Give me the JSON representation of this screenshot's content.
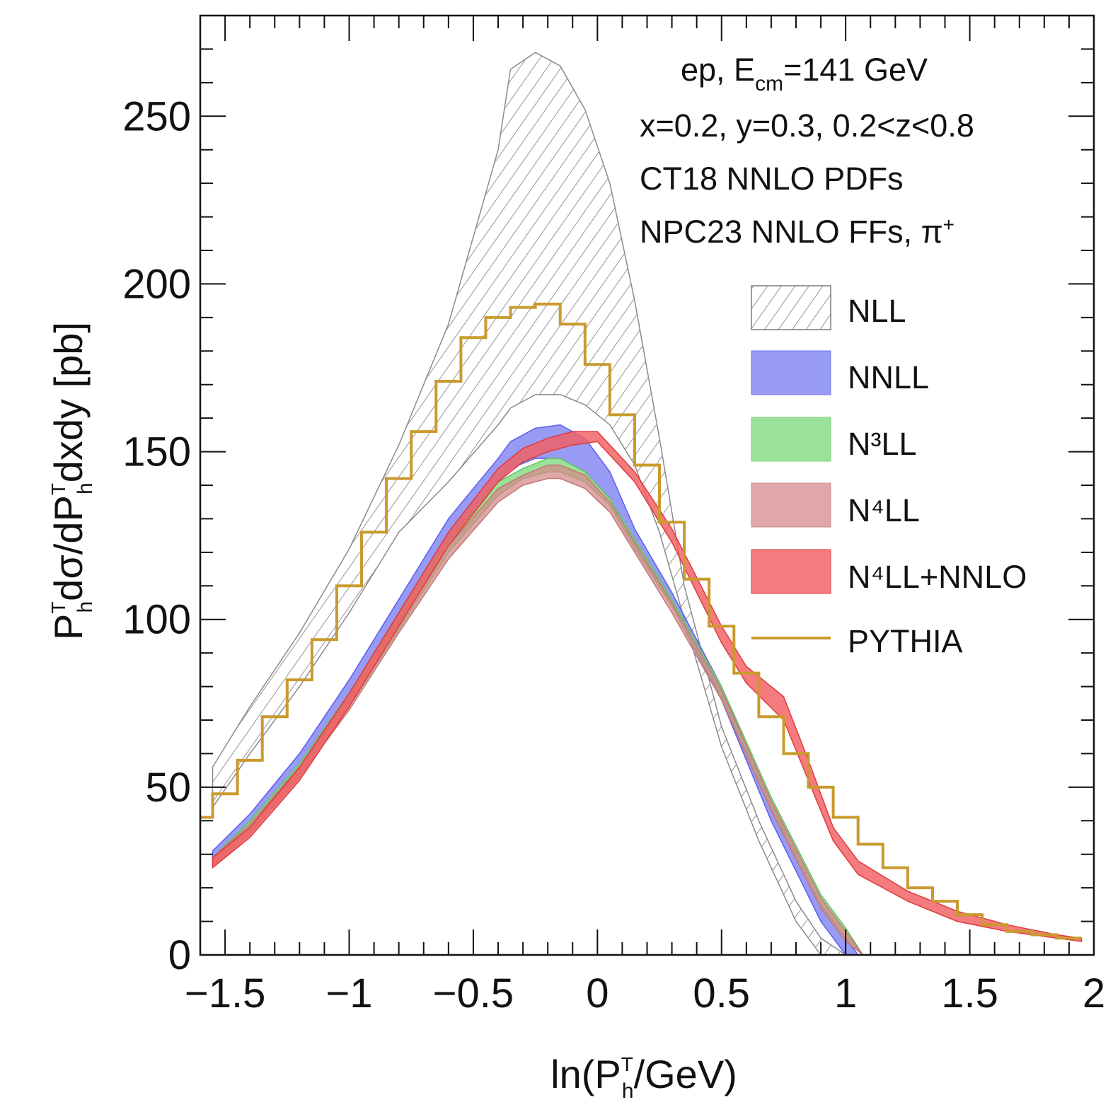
{
  "chart_data": {
    "type": "area",
    "xlabel": {
      "pre": "ln(P",
      "sup": "T",
      "sub": "h",
      "post": "/GeV)"
    },
    "ylabel": {
      "p1": "P",
      "p1_sup": "T",
      "p1_sub": "h",
      "mid": "dσ/dP",
      "p2_sup": "T",
      "p2_sub": "h",
      "post": "dxdy [pb]"
    },
    "xlim": [
      -1.6,
      2.0
    ],
    "ylim": [
      0,
      280
    ],
    "xticks": [
      -1.5,
      -1,
      -0.5,
      0,
      0.5,
      1,
      1.5,
      2
    ],
    "xtick_labels": [
      "−1.5",
      "−1",
      "−0.5",
      "0",
      "0.5",
      "1",
      "1.5",
      "2"
    ],
    "yticks": [
      0,
      50,
      100,
      150,
      200,
      250
    ],
    "ytick_labels": [
      "0",
      "50",
      "100",
      "150",
      "200",
      "250"
    ],
    "grid": false,
    "legend_position": "right",
    "annotations": [
      {
        "pre": "ep, E",
        "sub": "cm",
        "post": "=141 GeV"
      },
      {
        "pre": "x=0.2, y=0.3, 0.2<z<0.8"
      },
      {
        "pre": "CT18 NNLO PDFs"
      },
      {
        "pre": "NPC23 NNLO FFs, π",
        "sup": "+"
      }
    ],
    "series": [
      {
        "name": "NLL",
        "style": "hatch",
        "color": "#8a8a8a",
        "x": [
          -1.55,
          -1.4,
          -1.2,
          -1.0,
          -0.8,
          -0.6,
          -0.4,
          -0.35,
          -0.25,
          -0.15,
          -0.05,
          0.05,
          0.15,
          0.25,
          0.35,
          0.5,
          0.65,
          0.8,
          0.9,
          1.0
        ],
        "upper": [
          56,
          74,
          96,
          121,
          152,
          188,
          240,
          264,
          269,
          265,
          252,
          230,
          195,
          154,
          110,
          68,
          40,
          16,
          5,
          0
        ],
        "lower": [
          44,
          60,
          80,
          102,
          126,
          141,
          158,
          163,
          167,
          167,
          164,
          158,
          146,
          126,
          100,
          62,
          34,
          10,
          0,
          0
        ]
      },
      {
        "name": "NNLL",
        "style": "fill",
        "color": "#6f74f0",
        "x": [
          -1.55,
          -1.4,
          -1.2,
          -1.0,
          -0.8,
          -0.6,
          -0.4,
          -0.35,
          -0.25,
          -0.15,
          -0.05,
          0.05,
          0.15,
          0.3,
          0.5,
          0.7,
          0.9,
          1.0,
          1.05
        ],
        "upper": [
          31,
          42,
          60,
          82,
          106,
          130,
          148,
          153,
          157,
          158,
          154,
          144,
          127,
          108,
          80,
          45,
          15,
          5,
          0
        ],
        "lower": [
          28,
          38,
          55,
          76,
          99,
          123,
          141,
          145,
          148,
          148,
          144,
          136,
          122,
          104,
          76,
          40,
          10,
          0,
          0
        ]
      },
      {
        "name": "N³LL",
        "style": "fill",
        "color": "#7ed87c",
        "x": [
          -1.55,
          -1.4,
          -1.2,
          -1.0,
          -0.8,
          -0.6,
          -0.4,
          -0.3,
          -0.2,
          -0.15,
          -0.05,
          0.05,
          0.15,
          0.3,
          0.5,
          0.7,
          0.9,
          1.0,
          1.07
        ],
        "upper": [
          29,
          40,
          57,
          78,
          101,
          124,
          141,
          145,
          148,
          148,
          144,
          136,
          124,
          106,
          80,
          47,
          18,
          8,
          0
        ],
        "lower": [
          27,
          37,
          54,
          74,
          97,
          120,
          137,
          142,
          144,
          144,
          141,
          134,
          121,
          104,
          77,
          44,
          15,
          5,
          0
        ]
      },
      {
        "name": "N⁴LL",
        "style": "fill",
        "color": "#d48a8a",
        "x": [
          -1.55,
          -1.4,
          -1.2,
          -1.0,
          -0.8,
          -0.6,
          -0.4,
          -0.3,
          -0.2,
          -0.15,
          -0.05,
          0.05,
          0.15,
          0.3,
          0.5,
          0.7,
          0.9,
          1.0,
          1.07
        ],
        "upper": [
          29,
          39,
          56,
          77,
          100,
          122,
          139,
          143,
          146,
          146,
          143,
          135,
          123,
          105,
          79,
          46,
          17,
          7,
          0
        ],
        "lower": [
          26,
          36,
          53,
          73,
          96,
          118,
          135,
          140,
          142,
          142,
          139,
          132,
          120,
          102,
          76,
          43,
          14,
          4,
          0
        ]
      },
      {
        "name": "N⁴LL+NNLO",
        "style": "fill",
        "color": "#f25f62",
        "x": [
          -1.55,
          -1.4,
          -1.2,
          -1.0,
          -0.8,
          -0.6,
          -0.4,
          -0.3,
          -0.2,
          -0.1,
          0.0,
          0.15,
          0.3,
          0.5,
          0.6,
          0.75,
          0.85,
          0.95,
          1.05,
          1.25,
          1.45,
          1.65,
          1.85,
          1.95
        ],
        "upper": [
          29,
          38,
          56,
          78,
          102,
          126,
          145,
          151,
          154,
          156,
          156,
          144,
          127,
          98,
          86,
          77,
          58,
          38,
          28,
          19,
          13,
          9,
          6,
          5
        ],
        "lower": [
          26,
          35,
          52,
          74,
          98,
          122,
          141,
          147,
          150,
          152,
          153,
          141,
          123,
          93,
          81,
          70,
          52,
          34,
          24,
          16,
          10,
          7,
          5,
          4
        ]
      },
      {
        "name": "PYTHIA",
        "style": "step",
        "color": "#c99a2e",
        "edges": [
          -1.6,
          -1.55,
          -1.45,
          -1.35,
          -1.25,
          -1.15,
          -1.05,
          -0.95,
          -0.85,
          -0.75,
          -0.65,
          -0.55,
          -0.45,
          -0.35,
          -0.25,
          -0.15,
          -0.05,
          0.05,
          0.15,
          0.25,
          0.35,
          0.45,
          0.55,
          0.65,
          0.75,
          0.85,
          0.95,
          1.05,
          1.15,
          1.25,
          1.35,
          1.45,
          1.55,
          1.65,
          1.75,
          1.85,
          1.95
        ],
        "values": [
          41,
          48,
          58,
          71,
          82,
          94,
          110,
          126,
          142,
          156,
          171,
          184,
          190,
          193,
          194,
          188,
          176,
          161,
          146,
          129,
          112,
          98,
          84,
          71,
          60,
          50,
          41,
          33,
          26,
          20,
          16,
          12,
          9,
          7,
          6,
          5
        ]
      }
    ]
  }
}
